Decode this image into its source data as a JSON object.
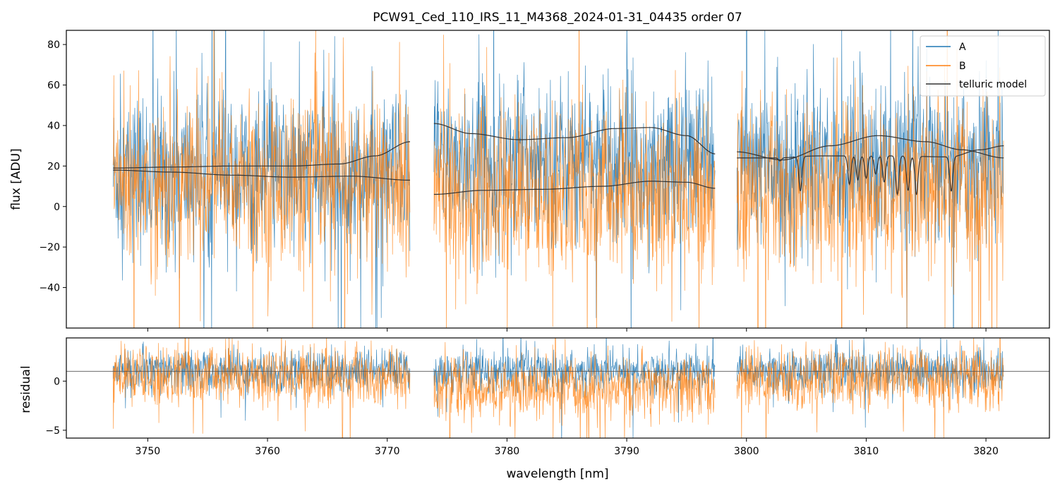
{
  "chart_data": [
    {
      "type": "line",
      "panel": "top",
      "title": "PCW91_Ced_110_IRS_11_M4368_2024-01-31_04435  order 07",
      "xlabel": "",
      "ylabel": "flux [ADU]",
      "xlim": [
        3743.2,
        3825.3
      ],
      "ylim": [
        -60,
        87
      ],
      "yticks": [
        80,
        60,
        40,
        20,
        0,
        -20,
        -40
      ],
      "ytick_labels": [
        "80",
        "60",
        "40",
        "20",
        "0",
        "−20",
        "−40"
      ],
      "xticks": [
        3750,
        3760,
        3770,
        3780,
        3790,
        3800,
        3810,
        3820
      ],
      "segments": [
        [
          3747.1,
          3771.9
        ],
        [
          3773.9,
          3797.4
        ],
        [
          3799.2,
          3821.5
        ]
      ],
      "series": [
        {
          "name": "A",
          "color": "#1f77b4",
          "mean": [
            16,
            24,
            22
          ],
          "noise_sigma": 20
        },
        {
          "name": "B",
          "color": "#ff7f0e",
          "mean": [
            12,
            6,
            8
          ],
          "noise_sigma": 22
        }
      ],
      "telluric_model": {
        "name": "telluric model",
        "color": "#333333",
        "curves": [
          {
            "x": [
              3747.1,
              3752,
              3757,
              3762,
              3766,
              3769,
              3771.9
            ],
            "y": [
              19,
              19.5,
              20,
              20,
              21,
              25,
              32
            ]
          },
          {
            "x": [
              3747.1,
              3752,
              3757,
              3762,
              3767,
              3771.9
            ],
            "y": [
              18,
              17,
              15.5,
              14.5,
              15,
              13
            ]
          },
          {
            "x": [
              3773.9,
              3777,
              3781,
              3785,
              3789,
              3792,
              3795,
              3797.4
            ],
            "y": [
              41,
              36,
              33,
              34,
              38.5,
              39,
              35,
              26
            ]
          },
          {
            "x": [
              3773.9,
              3778,
              3783,
              3788,
              3792,
              3795,
              3797.4
            ],
            "y": [
              6,
              8,
              8.5,
              10,
              12.5,
              12,
              9
            ]
          },
          {
            "x": [
              3799.2,
              3803,
              3807,
              3811,
              3815,
              3818,
              3821.5
            ],
            "y": [
              27,
              23,
              30,
              35,
              32,
              28,
              24
            ]
          },
          {
            "x": [
              3799.2,
              3802.5,
              3806,
              3812,
              3817,
              3819.5,
              3821.5
            ],
            "y": [
              24,
              24,
              25,
              25,
              24.5,
              28,
              30
            ]
          }
        ],
        "absorption_lines": [
          {
            "x": 3802.8,
            "depth": 1.5
          },
          {
            "x": 3804.5,
            "depth": 17
          },
          {
            "x": 3808.6,
            "depth": 14
          },
          {
            "x": 3809.3,
            "depth": 12
          },
          {
            "x": 3810.0,
            "depth": 11
          },
          {
            "x": 3810.8,
            "depth": 9
          },
          {
            "x": 3811.5,
            "depth": 13
          },
          {
            "x": 3812.6,
            "depth": 19
          },
          {
            "x": 3813.5,
            "depth": 17
          },
          {
            "x": 3814.2,
            "depth": 19
          },
          {
            "x": 3817.1,
            "depth": 17
          }
        ]
      },
      "legend": {
        "position": "top-right",
        "entries": [
          "A",
          "B",
          "telluric model"
        ]
      }
    },
    {
      "type": "line",
      "panel": "bottom",
      "xlabel": "wavelength [nm]",
      "ylabel": "residual",
      "xlim": [
        3743.2,
        3825.3
      ],
      "ylim": [
        -5.8,
        4.4
      ],
      "yticks": [
        0,
        -5
      ],
      "ytick_labels": [
        "0",
        "−5"
      ],
      "xticks": [
        3750,
        3760,
        3770,
        3780,
        3790,
        3800,
        3810,
        3820
      ],
      "xtick_labels": [
        "3750",
        "3760",
        "3770",
        "3780",
        "3790",
        "3800",
        "3810",
        "3820"
      ],
      "reference_line_y": 1,
      "segments": [
        [
          3747.1,
          3771.9
        ],
        [
          3773.9,
          3797.4
        ],
        [
          3799.2,
          3821.5
        ]
      ],
      "series": [
        {
          "name": "A",
          "color": "#1f77b4",
          "mean": [
            1,
            1,
            1
          ],
          "noise_sigma": 1.1
        },
        {
          "name": "B",
          "color": "#ff7f0e",
          "mean": [
            0.5,
            -0.8,
            0.2
          ],
          "noise_sigma": 1.6
        }
      ]
    }
  ]
}
